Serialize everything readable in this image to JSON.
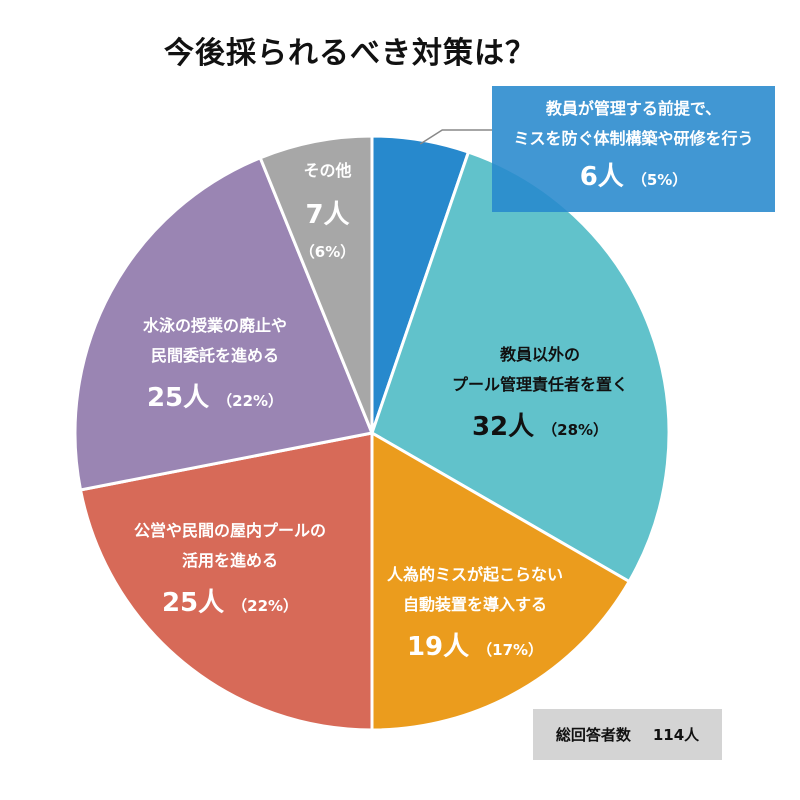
{
  "chart_data": {
    "type": "pie",
    "title": "今後採られるべき対策は？",
    "total_label": "総回答者数",
    "total_value": "114人",
    "slices": [
      {
        "label_lines": [
          "教員が管理する前提で、",
          "ミスを防ぐ体制構築や研修を行う"
        ],
        "count": 6,
        "count_label": "6人",
        "percent": 5,
        "percent_label": "（5%）",
        "color": "#2789cd"
      },
      {
        "label_lines": [
          "教員以外の",
          "プール管理責任者を置く"
        ],
        "count": 32,
        "count_label": "32人",
        "percent": 28,
        "percent_label": "（28%）",
        "color": "#61c2cb"
      },
      {
        "label_lines": [
          "人為的ミスが起こらない",
          "自動装置を導入する"
        ],
        "count": 19,
        "count_label": "19人",
        "percent": 17,
        "percent_label": "（17%）",
        "color": "#eb9c1d"
      },
      {
        "label_lines": [
          "公営や民間の屋内プールの",
          "活用を進める"
        ],
        "count": 25,
        "count_label": "25人",
        "percent": 22,
        "percent_label": "（22%）",
        "color": "#d76a58"
      },
      {
        "label_lines": [
          "水泳の授業の廃止や",
          "民間委託を進める"
        ],
        "count": 25,
        "count_label": "25人",
        "percent": 22,
        "percent_label": "（22%）",
        "color": "#9a85b3"
      },
      {
        "label_lines": [
          "その他"
        ],
        "count": 7,
        "count_label": "7人",
        "percent": 6,
        "percent_label": "（6%）",
        "color": "#a7a7a7"
      }
    ]
  }
}
